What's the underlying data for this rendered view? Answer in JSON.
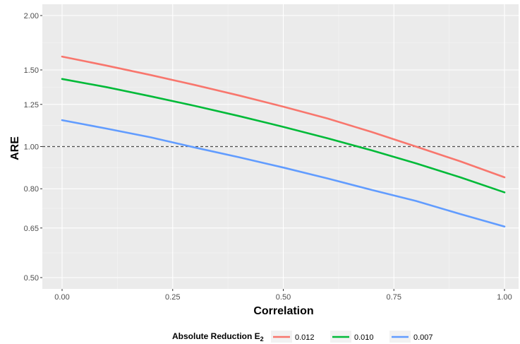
{
  "chart_data": {
    "type": "line",
    "xlabel": "Correlation",
    "ylabel": "ARE",
    "xlim": [
      0,
      1
    ],
    "ylim": [
      0.5,
      2.0
    ],
    "y_scale": "log",
    "x_ticks": [
      0,
      0.25,
      0.5,
      0.75,
      1.0
    ],
    "x_tick_labels": [
      "0.00",
      "0.25",
      "0.50",
      "0.75",
      "1.00"
    ],
    "y_ticks": [
      0.5,
      0.65,
      0.8,
      1.0,
      1.25,
      1.5,
      2.0
    ],
    "y_tick_labels": [
      "0.50",
      "0.65",
      "0.80",
      "1.00",
      "1.25",
      "1.50",
      "2.00"
    ],
    "grid": true,
    "reference_line": {
      "y": 1.0,
      "style": "dashed"
    },
    "legend": {
      "position": "bottom",
      "title_main": "Absolute Reduction E",
      "title_sub": "2"
    },
    "x": [
      0,
      0.1,
      0.2,
      0.3,
      0.4,
      0.5,
      0.6,
      0.7,
      0.8,
      0.9,
      1.0
    ],
    "series": [
      {
        "name": "0.012",
        "color": "#F8766D",
        "values": [
          1.61,
          1.535,
          1.46,
          1.385,
          1.31,
          1.235,
          1.16,
          1.08,
          1.0,
          0.925,
          0.85
        ]
      },
      {
        "name": "0.010",
        "color": "#00BA38",
        "values": [
          1.43,
          1.37,
          1.305,
          1.24,
          1.175,
          1.11,
          1.045,
          0.98,
          0.915,
          0.85,
          0.785
        ]
      },
      {
        "name": "0.007",
        "color": "#619CFF",
        "values": [
          1.15,
          1.1,
          1.05,
          0.995,
          0.945,
          0.895,
          0.845,
          0.795,
          0.75,
          0.7,
          0.655
        ]
      }
    ]
  }
}
